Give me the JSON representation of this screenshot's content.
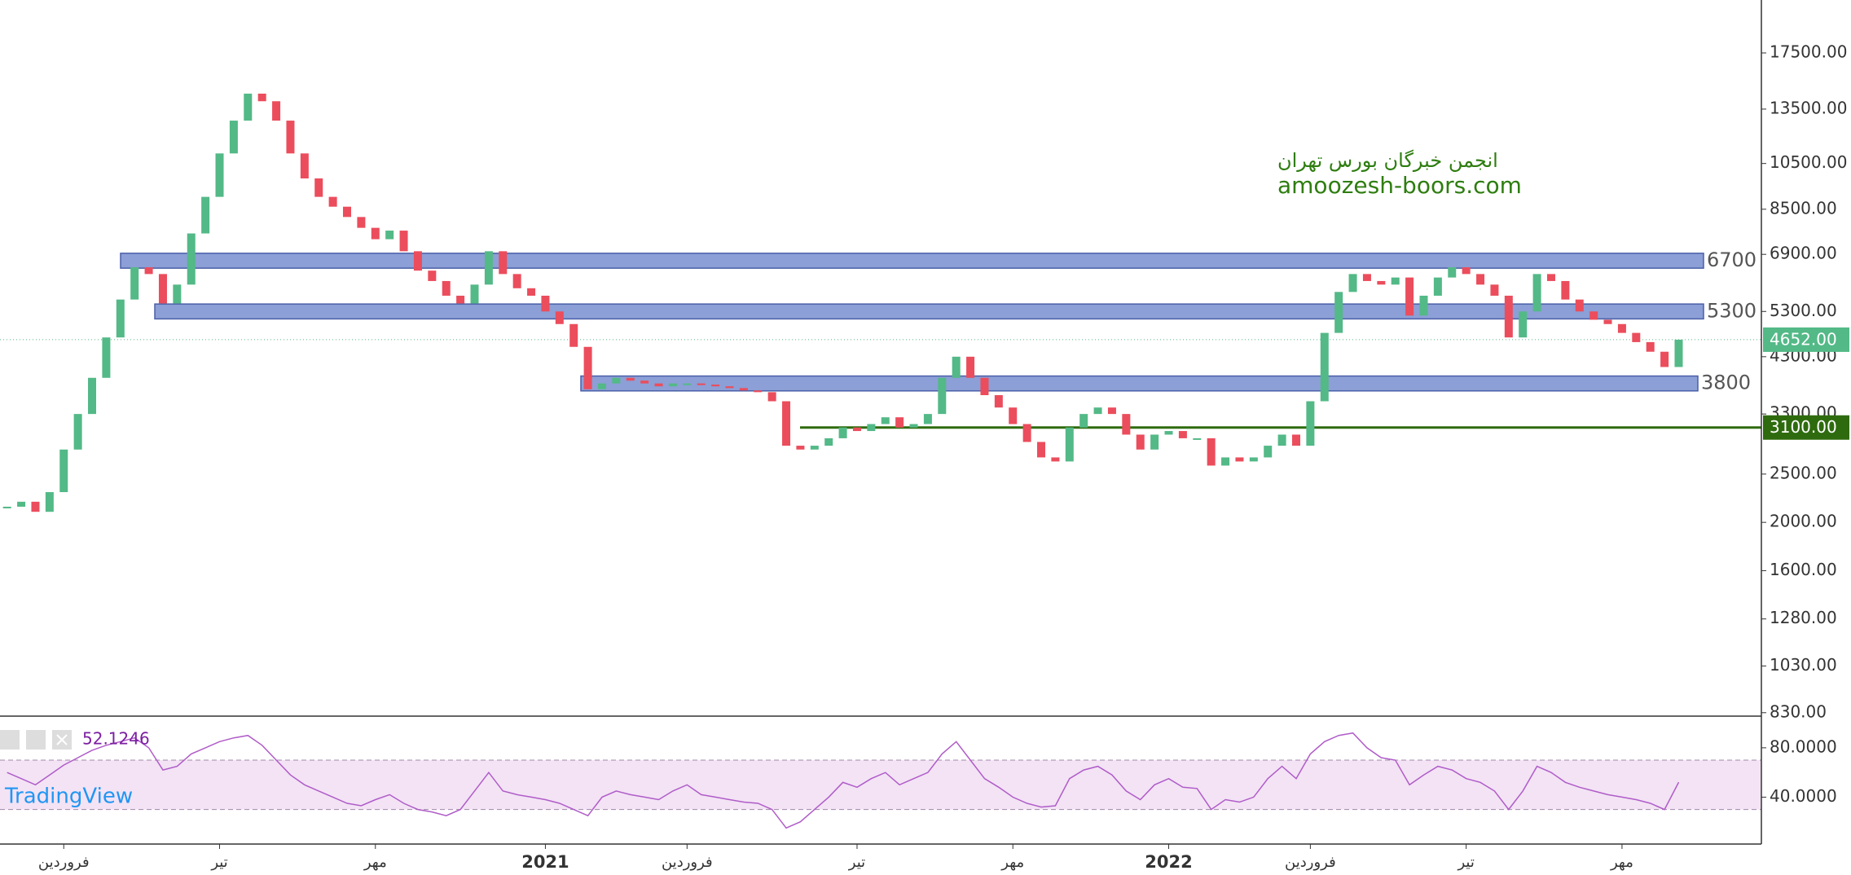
{
  "chart_data": [
    {
      "type": "candlestick",
      "annotations": [
        "انجمن خبرگان بورس تهران",
        "amoozesh-boors.com"
      ],
      "categories": [
        null,
        null,
        null,
        null,
        "فروردین",
        null,
        null,
        null,
        null,
        null,
        null,
        null,
        null,
        null,
        null,
        "تیر",
        null,
        null,
        null,
        null,
        null,
        null,
        null,
        null,
        null,
        null,
        "مهر",
        null,
        null,
        null,
        null,
        null,
        null,
        null,
        null,
        null,
        null,
        null,
        "2021",
        null,
        null,
        null,
        null,
        null,
        null,
        null,
        null,
        null,
        "فروردین",
        null,
        null,
        null,
        null,
        null,
        null,
        null,
        null,
        null,
        null,
        null,
        "تیر",
        null,
        null,
        null,
        null,
        null,
        null,
        null,
        null,
        null,
        null,
        "مهر",
        null,
        null,
        null,
        null,
        null,
        null,
        null,
        null,
        null,
        null,
        "2022",
        null,
        null,
        null,
        null,
        null,
        null,
        null,
        null,
        null,
        "فروردین",
        null,
        null,
        null,
        null,
        null,
        null,
        null,
        null,
        null,
        null,
        "تیر",
        null,
        null,
        null,
        null,
        null,
        null,
        null,
        null,
        null,
        null,
        "مهر",
        null,
        null,
        null,
        null
      ],
      "series": [
        {
          "up_color": "#53b987",
          "down_color": "#eb4d5c",
          "values": [
            2150,
            2200,
            2100,
            2300,
            2800,
            3300,
            3900,
            4700,
            5600,
            6500,
            6300,
            5500,
            6000,
            7600,
            9000,
            11000,
            12800,
            14500,
            14000,
            12800,
            11000,
            9800,
            9000,
            8600,
            8200,
            7800,
            7400,
            7700,
            7000,
            6400,
            6100,
            5700,
            5500,
            6000,
            7000,
            6300,
            5900,
            5700,
            5300,
            5000,
            4500,
            3700,
            3800,
            3900,
            3850,
            3800,
            3750,
            3800,
            3800,
            3780,
            3750,
            3720,
            3680,
            3650,
            3500,
            2850,
            2800,
            2850,
            2950,
            3100,
            3050,
            3150,
            3250,
            3100,
            3150,
            3300,
            3900,
            4300,
            3900,
            3600,
            3400,
            3150,
            2900,
            2700,
            2650,
            3100,
            3300,
            3400,
            3300,
            3000,
            2800,
            3000,
            3050,
            2950,
            2950,
            2600,
            2700,
            2650,
            2700,
            2850,
            3000,
            2850,
            3500,
            4800,
            5800,
            6300,
            6100,
            6000,
            6200,
            5200,
            5700,
            6200,
            6500,
            6300,
            6000,
            5700,
            4700,
            5300,
            6300,
            6100,
            5600,
            5300,
            5100,
            5000,
            4800,
            4600,
            4400,
            4100,
            4652
          ]
        }
      ],
      "log_scale": true,
      "ylim": [
        820,
        22350
      ],
      "yticks": [
        {
          "value": 17500,
          "label": "17500.00"
        },
        {
          "value": 13500,
          "label": "13500.00"
        },
        {
          "value": 10500,
          "label": "10500.00"
        },
        {
          "value": 8500,
          "label": "8500.00"
        },
        {
          "value": 6900,
          "label": "6900.00"
        },
        {
          "value": 5300,
          "label": "5300.00"
        },
        {
          "value": 4300,
          "label": "4300.00"
        },
        {
          "value": 3300,
          "label": "3300.00"
        },
        {
          "value": 2500,
          "label": "2500.00"
        },
        {
          "value": 2000,
          "label": "2000.00"
        },
        {
          "value": 1600,
          "label": "1600.00"
        },
        {
          "value": 1280,
          "label": "1280.00"
        },
        {
          "value": 1030,
          "label": "1030.00"
        },
        {
          "value": 830,
          "label": "830.00"
        }
      ],
      "levels": [
        6700,
        5300,
        3800
      ],
      "level_color": "#8c9fd6",
      "support": {
        "value": 3100,
        "label": "3100.00",
        "color": "#2e6b0e"
      },
      "last_price": {
        "value": 4652,
        "label": "4652.00",
        "color": "#53b987"
      }
    },
    {
      "type": "line",
      "logo": "TradingView",
      "current": 52.1246,
      "ylim": [
        2,
        105
      ],
      "yticks": [
        {
          "value": 80,
          "label": "80.0000"
        },
        {
          "value": 40,
          "label": "40.0000"
        }
      ],
      "bands": [
        30,
        70
      ],
      "series": [
        {
          "color": "#b05cc8",
          "values": [
            60,
            55,
            50,
            58,
            66,
            72,
            78,
            82,
            85,
            88,
            80,
            62,
            65,
            75,
            80,
            85,
            88,
            90,
            82,
            70,
            58,
            50,
            45,
            40,
            35,
            33,
            38,
            42,
            35,
            30,
            28,
            25,
            30,
            45,
            60,
            45,
            42,
            40,
            38,
            35,
            30,
            25,
            40,
            45,
            42,
            40,
            38,
            45,
            50,
            42,
            40,
            38,
            36,
            35,
            30,
            15,
            20,
            30,
            40,
            52,
            48,
            55,
            60,
            50,
            55,
            60,
            75,
            85,
            70,
            55,
            48,
            40,
            35,
            32,
            33,
            55,
            62,
            65,
            58,
            45,
            38,
            50,
            55,
            48,
            47,
            30,
            38,
            36,
            40,
            55,
            65,
            55,
            75,
            85,
            90,
            92,
            80,
            72,
            70,
            50,
            58,
            65,
            62,
            55,
            52,
            45,
            30,
            45,
            65,
            60,
            52,
            48,
            45,
            42,
            40,
            38,
            35,
            30,
            52.1246
          ]
        }
      ]
    }
  ]
}
